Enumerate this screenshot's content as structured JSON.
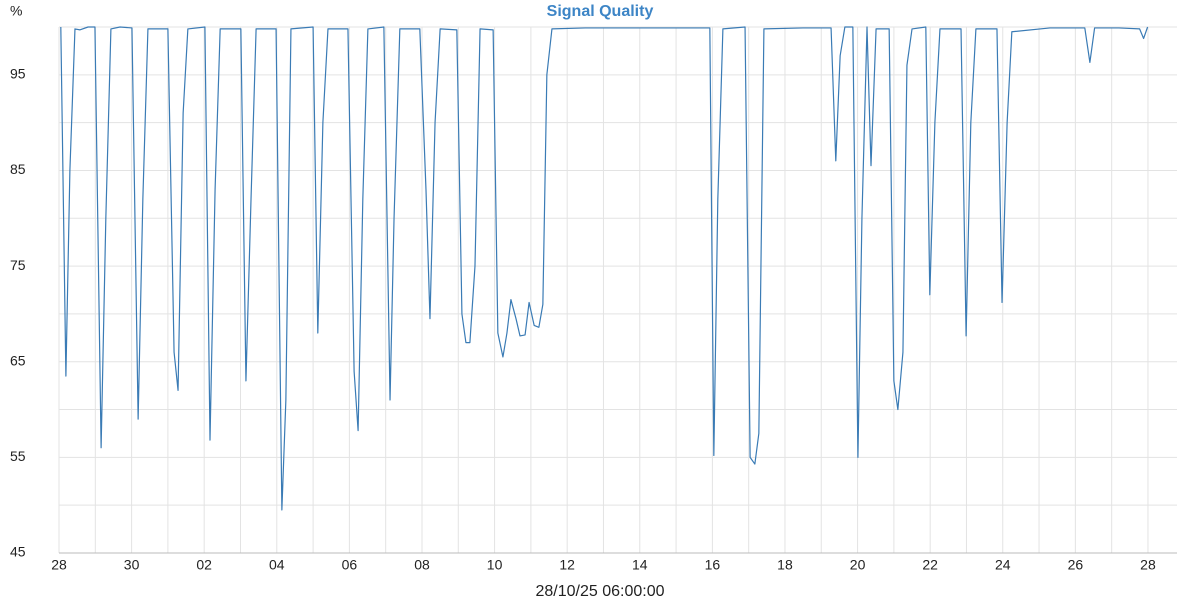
{
  "chart_data": {
    "type": "line",
    "title": "Signal Quality",
    "y_label": "%",
    "x_label": "28/10/25 06:00:00",
    "color": "#3a7bb5",
    "grid": true,
    "xlim": [
      0,
      30.8
    ],
    "ylim": [
      45,
      100
    ],
    "xticks": [
      {
        "value": 0,
        "label": "28"
      },
      {
        "value": 2,
        "label": "30"
      },
      {
        "value": 4,
        "label": "02"
      },
      {
        "value": 6,
        "label": "04"
      },
      {
        "value": 8,
        "label": "06"
      },
      {
        "value": 10,
        "label": "08"
      },
      {
        "value": 12,
        "label": "10"
      },
      {
        "value": 14,
        "label": "12"
      },
      {
        "value": 16,
        "label": "14"
      },
      {
        "value": 18,
        "label": "16"
      },
      {
        "value": 20,
        "label": "18"
      },
      {
        "value": 22,
        "label": "20"
      },
      {
        "value": 24,
        "label": "22"
      },
      {
        "value": 26,
        "label": "24"
      },
      {
        "value": 28,
        "label": "26"
      },
      {
        "value": 30,
        "label": "28"
      }
    ],
    "x_minor_ticks": [
      1,
      3,
      5,
      7,
      9,
      11,
      13,
      15,
      17,
      19,
      21,
      23,
      25,
      27,
      29
    ],
    "yticks": [
      45,
      55,
      65,
      75,
      85,
      95
    ],
    "y_minor_ticks": [
      50,
      60,
      70,
      80,
      90,
      100
    ],
    "x": [
      0.05,
      0.19,
      0.3,
      0.44,
      0.58,
      0.8,
      0.99,
      1.16,
      1.29,
      1.43,
      1.68,
      2.01,
      2.18,
      2.31,
      2.45,
      3.0,
      3.17,
      3.28,
      3.42,
      3.55,
      4.02,
      4.16,
      4.3,
      4.44,
      5.01,
      5.15,
      5.29,
      5.43,
      5.98,
      6.14,
      6.25,
      6.39,
      7.0,
      7.13,
      7.27,
      7.41,
      7.96,
      8.13,
      8.24,
      8.37,
      8.51,
      8.95,
      9.12,
      9.23,
      9.39,
      9.94,
      10.11,
      10.22,
      10.36,
      10.5,
      10.96,
      11.1,
      11.21,
      11.32,
      11.46,
      11.6,
      11.96,
      12.09,
      12.23,
      12.34,
      12.45,
      12.59,
      12.7,
      12.84,
      12.95,
      13.09,
      13.22,
      13.33,
      13.44,
      13.58,
      14.5,
      15.5,
      16.5,
      17.5,
      17.93,
      18.04,
      18.15,
      18.29,
      18.9,
      19.04,
      19.17,
      19.28,
      19.42,
      20.5,
      21.27,
      21.4,
      21.52,
      21.65,
      21.87,
      22.01,
      22.12,
      22.26,
      22.37,
      22.51,
      22.87,
      23.0,
      23.11,
      23.25,
      23.36,
      23.5,
      23.88,
      23.99,
      24.13,
      24.27,
      24.85,
      24.99,
      25.12,
      25.26,
      25.84,
      25.98,
      26.12,
      26.25,
      27.3,
      28.26,
      28.4,
      28.53,
      29.2,
      29.77,
      29.88,
      29.99
    ],
    "values": [
      100,
      63.5,
      85,
      99.8,
      99.7,
      100,
      100,
      56,
      80,
      99.8,
      100,
      99.9,
      59,
      82,
      99.8,
      99.8,
      66,
      62,
      91,
      99.8,
      100,
      56.8,
      83,
      99.8,
      99.8,
      63,
      82,
      99.8,
      99.8,
      49.5,
      61,
      99.8,
      100,
      68,
      90,
      99.8,
      99.8,
      64,
      57.8,
      82,
      99.8,
      100,
      61,
      80,
      99.8,
      99.8,
      83,
      69.5,
      90,
      99.8,
      99.7,
      70,
      67,
      67,
      75,
      99.8,
      99.7,
      68,
      65.5,
      68,
      71.5,
      69.5,
      67.7,
      67.8,
      71.2,
      68.8,
      68.6,
      71,
      95,
      99.8,
      99.9,
      99.9,
      99.9,
      99.9,
      99.9,
      55.2,
      82,
      99.8,
      100,
      55,
      54.3,
      57.5,
      99.8,
      99.9,
      99.9,
      86,
      97,
      100,
      100,
      55,
      80,
      100,
      85.5,
      99.8,
      99.8,
      63,
      60,
      66,
      96,
      99.8,
      100,
      72,
      90,
      99.8,
      99.8,
      67.7,
      90,
      99.8,
      99.8,
      71.2,
      90,
      99.5,
      99.9,
      99.9,
      96.3,
      99.9,
      99.9,
      99.8,
      98.8,
      100
    ]
  }
}
